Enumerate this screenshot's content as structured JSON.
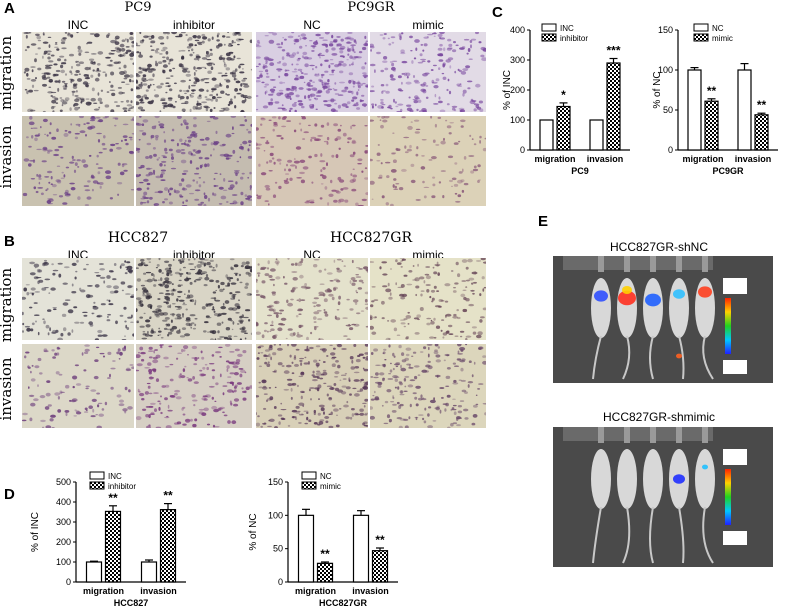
{
  "panels": {
    "A": {
      "label": "A",
      "left_title": "PC9",
      "right_title": "PC9GR",
      "cols": [
        "INC",
        "inhibitor",
        "NC",
        "mimic"
      ],
      "rows": [
        "migration",
        "invasion"
      ]
    },
    "B": {
      "label": "B",
      "left_title": "HCC827",
      "right_title": "HCC827GR",
      "cols": [
        "INC",
        "inhibitor",
        "NC",
        "mimic"
      ],
      "rows": [
        "migration",
        "invasion"
      ]
    },
    "C": {
      "label": "C"
    },
    "D": {
      "label": "D"
    },
    "E": {
      "label": "E",
      "top_title": "HCC827GR-shNC",
      "bottom_title": "HCC827GR-shmimic"
    }
  },
  "colors": {
    "migration_bg": "#e8e4d8",
    "migration_stain": "#3a3344",
    "invasion_bg": "#c9c2b0",
    "invasion_stain": "#6a3f86",
    "nc_bg": "#d9cfe2",
    "nc_stain": "#7b4aa0",
    "mouse_bg": "#4a4a4a",
    "bar_hatch": "#000000"
  },
  "chart_data": [
    {
      "id": "C1",
      "type": "bar",
      "categories": [
        "migration",
        "invasion"
      ],
      "xlabel": "PC9",
      "ylabel": "% of INC",
      "ylim": [
        0,
        400
      ],
      "yticks": [
        0,
        100,
        200,
        300,
        400
      ],
      "series": [
        {
          "name": "INC",
          "values": [
            100,
            100
          ],
          "errors": [
            0,
            0
          ]
        },
        {
          "name": "inhibitor",
          "values": [
            145,
            290
          ],
          "errors": [
            12,
            15
          ]
        }
      ],
      "annotations": [
        "*",
        "***"
      ]
    },
    {
      "id": "C2",
      "type": "bar",
      "categories": [
        "migration",
        "invasion"
      ],
      "xlabel": "PC9GR",
      "ylabel": "% of NC",
      "ylim": [
        0,
        150
      ],
      "yticks": [
        0,
        50,
        100,
        150
      ],
      "series": [
        {
          "name": "NC",
          "values": [
            100,
            100
          ],
          "errors": [
            3,
            8
          ]
        },
        {
          "name": "mimic",
          "values": [
            61,
            44
          ],
          "errors": [
            3,
            2
          ]
        }
      ],
      "annotations": [
        "**",
        "**"
      ]
    },
    {
      "id": "D1",
      "type": "bar",
      "categories": [
        "migration",
        "invasion"
      ],
      "xlabel": "HCC827",
      "ylabel": "% of INC",
      "ylim": [
        0,
        500
      ],
      "yticks": [
        0,
        100,
        200,
        300,
        400,
        500
      ],
      "series": [
        {
          "name": "INC",
          "values": [
            100,
            100
          ],
          "errors": [
            4,
            10
          ]
        },
        {
          "name": "inhibitor",
          "values": [
            353,
            362
          ],
          "errors": [
            28,
            30
          ]
        }
      ],
      "annotations": [
        "**",
        "**"
      ]
    },
    {
      "id": "D2",
      "type": "bar",
      "categories": [
        "migration",
        "invasion"
      ],
      "xlabel": "HCC827GR",
      "ylabel": "% of NC",
      "ylim": [
        0,
        150
      ],
      "yticks": [
        0,
        50,
        100,
        150
      ],
      "series": [
        {
          "name": "NC",
          "values": [
            100,
            100
          ],
          "errors": [
            9,
            7
          ]
        },
        {
          "name": "mimic",
          "values": [
            28,
            47
          ],
          "errors": [
            2,
            4
          ]
        }
      ],
      "annotations": [
        "**",
        "**"
      ]
    }
  ]
}
